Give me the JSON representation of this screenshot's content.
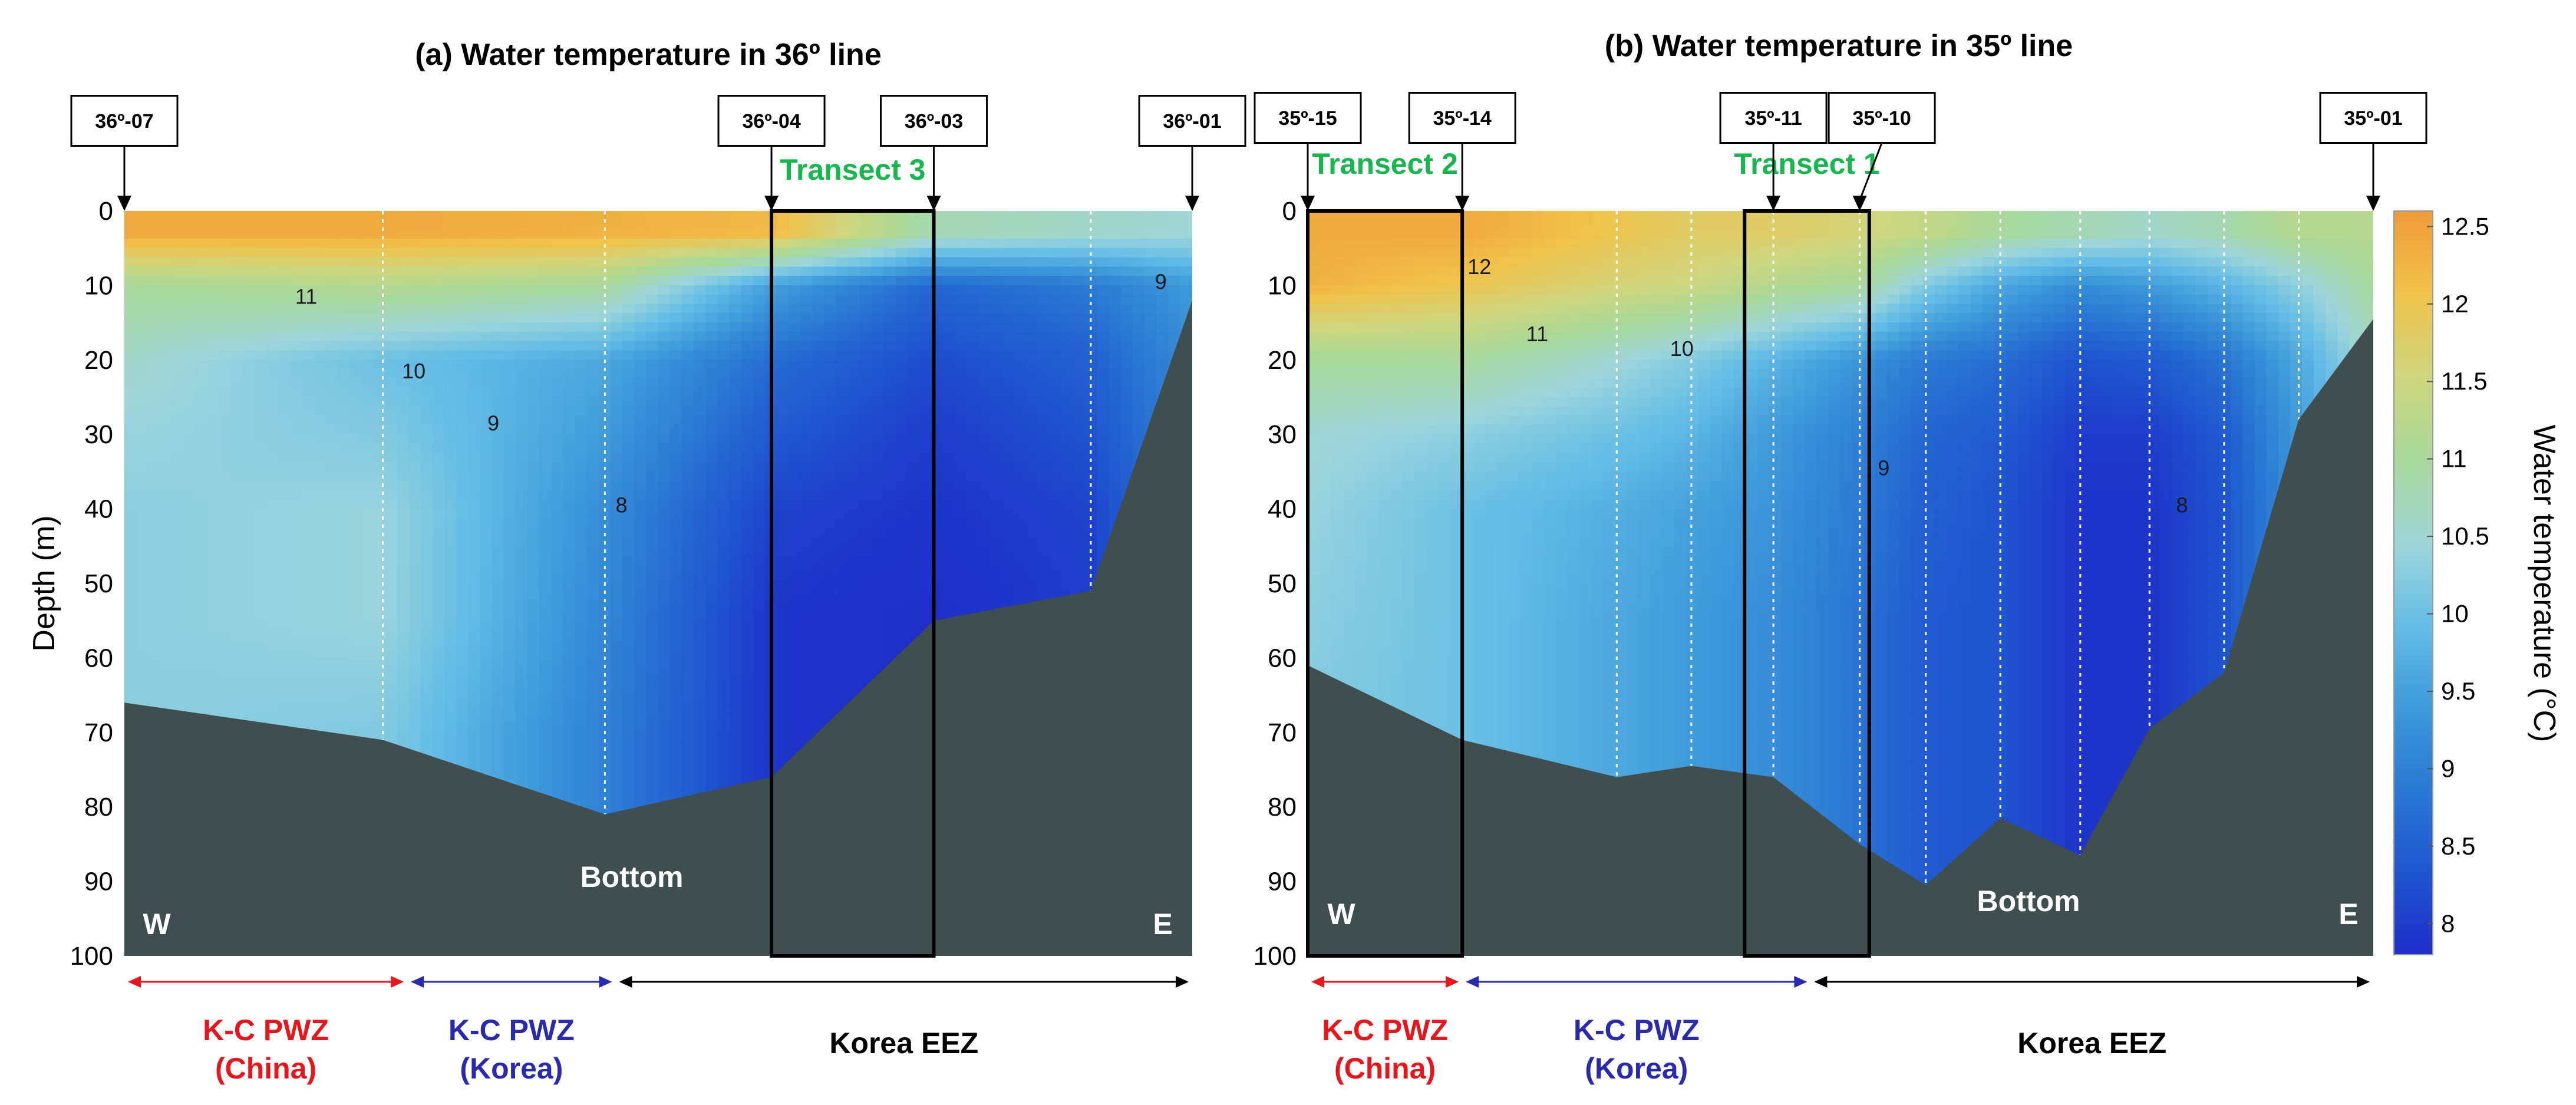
{
  "colors": {
    "bottom": "#3f4f4f",
    "transect_green": "#16b84e",
    "pwz_china": "#e8161b",
    "pwz_korea": "#2a2ab0",
    "eez": "#000000",
    "cmap": [
      "#1e2ec8",
      "#1f55cf",
      "#2a78d4",
      "#3f9ad9",
      "#66bde6",
      "#9fd6d9",
      "#a8d89a",
      "#cfd77f",
      "#f0c24a",
      "#ef9b3a"
    ]
  },
  "chart_data": [
    {
      "type": "contour-section",
      "panel": "a",
      "title": "(a) Water temperature in 36º line",
      "ylabel": "Depth (m)",
      "ylim": [
        0,
        100
      ],
      "yticks": [
        "0",
        "10",
        "20",
        "30",
        "40",
        "50",
        "60",
        "70",
        "80",
        "90",
        "100"
      ],
      "stations": [
        {
          "label": "36º-07",
          "x": 0.0
        },
        {
          "label": "36º-04",
          "x": 0.606
        },
        {
          "label": "36º-03",
          "x": 0.758
        },
        {
          "label": "36º-01",
          "x": 1.0
        }
      ],
      "cast_x": [
        0.0,
        0.242,
        0.45,
        0.606,
        0.758,
        0.905,
        1.0
      ],
      "bottom_depth": [
        66,
        71,
        81,
        76,
        55,
        51,
        12
      ],
      "temperature_profiles": [
        [
          12.4,
          11.0,
          10.6,
          10.4,
          10.3,
          10.3,
          10.3
        ],
        [
          12.4,
          11.2,
          10.0,
          10.2,
          10.4,
          10.4,
          10.2
        ],
        [
          12.3,
          11.0,
          9.6,
          9.4,
          9.2,
          9.1,
          9.0
        ],
        [
          12.2,
          9.5,
          8.7,
          8.4,
          8.1,
          7.9,
          7.9
        ],
        [
          10.8,
          8.6,
          8.2,
          8.0,
          7.9,
          7.8,
          7.8
        ],
        [
          10.6,
          8.9,
          8.5,
          8.3,
          8.1,
          8.0,
          8.0
        ],
        [
          10.5,
          9.4,
          9.2,
          9.1,
          9.0,
          9.0,
          9.0
        ]
      ],
      "profile_depths": [
        3,
        10,
        20,
        30,
        40,
        55,
        70
      ],
      "isotherm_labels": [
        {
          "text": "11",
          "x": 0.16,
          "depth": 12
        },
        {
          "text": "10",
          "x": 0.26,
          "depth": 22
        },
        {
          "text": "9",
          "x": 0.34,
          "depth": 29
        },
        {
          "text": "8",
          "x": 0.46,
          "depth": 40
        },
        {
          "text": "9",
          "x": 0.965,
          "depth": 10
        }
      ],
      "transect": {
        "label": "Transect 3",
        "x_start": 0.606,
        "x_end": 0.758
      },
      "bottom_label": "Bottom",
      "west_label": "W",
      "east_label": "E",
      "zones": [
        {
          "label": [
            "K-C PWZ",
            "(China)"
          ],
          "x_start": 0.0,
          "x_end": 0.265,
          "color_key": "pwz_china"
        },
        {
          "label": [
            "K-C PWZ",
            "(Korea)"
          ],
          "x_start": 0.265,
          "x_end": 0.46,
          "color_key": "pwz_korea"
        },
        {
          "label": [
            "Korea EEZ"
          ],
          "x_start": 0.46,
          "x_end": 1.0,
          "color_key": "eez"
        }
      ]
    },
    {
      "type": "contour-section",
      "panel": "b",
      "title": "(b) Water temperature in 35º line",
      "ylabel": "",
      "ylim": [
        0,
        100
      ],
      "yticks": [
        "0",
        "10",
        "20",
        "30",
        "40",
        "50",
        "60",
        "70",
        "80",
        "90",
        "100"
      ],
      "stations": [
        {
          "label": "35º-15",
          "x": 0.0
        },
        {
          "label": "35º-14",
          "x": 0.145
        },
        {
          "label": "35º-11",
          "x": 0.437
        },
        {
          "label": "35º-10",
          "x": 0.518
        },
        {
          "label": "35º-01",
          "x": 1.0
        }
      ],
      "cast_x": [
        0.0,
        0.145,
        0.29,
        0.36,
        0.437,
        0.518,
        0.58,
        0.65,
        0.725,
        0.79,
        0.86,
        0.93,
        1.0
      ],
      "bottom_depth": [
        61,
        71,
        76,
        74.5,
        76,
        85,
        90.5,
        81.5,
        86.5,
        69.5,
        62,
        28,
        14.5
      ],
      "temperature_profiles": [
        [
          12.4,
          12.3,
          11.0,
          10.5,
          10.4,
          10.3,
          10.2
        ],
        [
          12.4,
          12.0,
          11.0,
          10.3,
          10.0,
          10.0,
          10.0
        ],
        [
          12.0,
          11.6,
          10.5,
          10.0,
          9.7,
          9.6,
          9.6
        ],
        [
          11.8,
          11.5,
          10.2,
          9.8,
          9.5,
          9.4,
          9.4
        ],
        [
          11.8,
          11.2,
          9.8,
          9.4,
          9.3,
          9.2,
          9.2
        ],
        [
          11.6,
          11.0,
          9.3,
          9.0,
          8.9,
          8.8,
          8.8
        ],
        [
          11.4,
          10.2,
          8.9,
          8.6,
          8.5,
          8.4,
          8.4
        ],
        [
          11.0,
          9.6,
          8.7,
          8.4,
          8.3,
          8.3,
          8.3
        ],
        [
          10.8,
          9.2,
          8.3,
          8.0,
          7.9,
          7.9,
          7.9
        ],
        [
          10.6,
          9.4,
          8.4,
          8.0,
          7.9,
          7.9,
          7.9
        ],
        [
          10.8,
          9.8,
          8.8,
          8.4,
          8.3,
          8.3,
          8.3
        ],
        [
          11.2,
          10.3,
          9.6,
          9.4,
          9.3,
          9.3,
          9.3
        ],
        [
          11.2,
          11.0,
          10.6,
          10.5,
          10.5,
          10.5,
          10.5
        ]
      ],
      "profile_depths": [
        3,
        10,
        20,
        30,
        40,
        55,
        70
      ],
      "isotherm_labels": [
        {
          "text": "12",
          "x": 0.15,
          "depth": 8
        },
        {
          "text": "11",
          "x": 0.205,
          "depth": 17
        },
        {
          "text": "10",
          "x": 0.34,
          "depth": 19
        },
        {
          "text": "9",
          "x": 0.535,
          "depth": 35
        },
        {
          "text": "8",
          "x": 0.815,
          "depth": 40
        }
      ],
      "transect_boxes": [
        {
          "label": "Transect 2",
          "x_start": 0.0,
          "x_end": 0.145
        },
        {
          "label": "Transect 1",
          "x_start": 0.41,
          "x_end": 0.527
        }
      ],
      "bottom_label": "Bottom",
      "west_label": "W",
      "east_label": "E",
      "zones": [
        {
          "label": [
            "K-C PWZ",
            "(China)"
          ],
          "x_start": 0.0,
          "x_end": 0.145,
          "color_key": "pwz_china"
        },
        {
          "label": [
            "K-C PWZ",
            "(Korea)"
          ],
          "x_start": 0.145,
          "x_end": 0.472,
          "color_key": "pwz_korea"
        },
        {
          "label": [
            "Korea EEZ"
          ],
          "x_start": 0.472,
          "x_end": 1.0,
          "color_key": "eez"
        }
      ]
    }
  ],
  "colorbar": {
    "label": "Water temperature (°C)",
    "min": 7.8,
    "max": 12.6,
    "ticks": [
      "12.5",
      "12",
      "11.5",
      "11",
      "10.5",
      "10",
      "9.5",
      "9",
      "8.5",
      "8"
    ],
    "tick_values": [
      12.5,
      12,
      11.5,
      11,
      10.5,
      10,
      9.5,
      9,
      8.5,
      8
    ]
  }
}
